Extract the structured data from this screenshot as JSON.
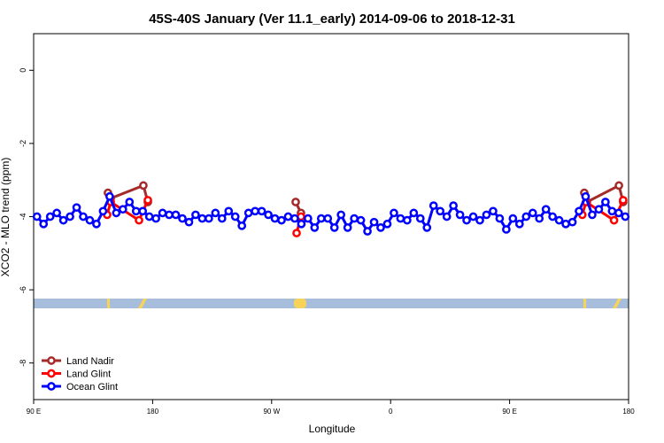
{
  "chart_data": {
    "type": "line",
    "title": "45S-40S January (Ver 11.1_early)   2014-09-06 to 2018-12-31",
    "x_label": "Longitude",
    "y_label": "XCO2 - MLO trend (ppm)",
    "xlim": [
      90,
      540
    ],
    "xticks": [
      {
        "value": 90,
        "label": "90 E"
      },
      {
        "value": 180,
        "label": "180"
      },
      {
        "value": 270,
        "label": "90 W"
      },
      {
        "value": 360,
        "label": "0"
      },
      {
        "value": 450,
        "label": "90 E"
      },
      {
        "value": 540,
        "label": "180"
      }
    ],
    "ylim": [
      -9,
      1
    ],
    "yticks": [
      0,
      -2,
      -4,
      -6,
      -8
    ],
    "legend": "bottom-left",
    "series": [
      {
        "name": "Land Nadir",
        "color": "#a52a2a",
        "x": [
          146.2,
          148.3,
          173,
          176.4,
          230,
          288.2,
          292.2,
          400,
          506.5,
          508.5,
          532.7,
          535.9
        ],
        "values": [
          -3.35,
          -3.5,
          -3.15,
          -3.6,
          null,
          -3.6,
          -3.9,
          null,
          -3.35,
          -3.6,
          -3.15,
          -3.6
        ]
      },
      {
        "name": "Land Glint",
        "color": "#ff0000",
        "x": [
          145.6,
          148.3,
          169.7,
          176.4,
          230,
          288.9,
          292.2,
          400,
          505,
          507.8,
          529,
          535.9
        ],
        "values": [
          -3.95,
          -3.6,
          -4.1,
          -3.55,
          null,
          -4.45,
          -4.0,
          null,
          -3.95,
          -3.6,
          -4.1,
          -3.55
        ]
      },
      {
        "name": "Ocean Glint",
        "color": "#0000ff",
        "x": [
          92.5,
          97.5,
          102.5,
          107.5,
          112.5,
          117.5,
          122.5,
          127.5,
          132.5,
          137.5,
          142.5,
          147.5,
          152.5,
          157.5,
          162.5,
          167.5,
          172.5,
          177.5,
          182.5,
          187.5,
          192.5,
          197.5,
          202.5,
          207.5,
          212.5,
          217.5,
          222.5,
          227.5,
          232.5,
          237.5,
          242.5,
          247.5,
          252.5,
          257.5,
          262.5,
          267.5,
          272.5,
          277.5,
          282.5,
          287.5,
          292.5,
          297.5,
          302.5,
          307.5,
          312.5,
          317.5,
          322.5,
          327.5,
          332.5,
          337.5,
          342.5,
          347.5,
          352.5,
          357.5,
          362.5,
          367.5,
          372.5,
          377.5,
          382.5,
          387.5,
          392.5,
          397.5,
          402.5,
          407.5,
          412.5,
          417.5,
          422.5,
          427.5,
          432.5,
          437.5,
          442.5,
          447.5,
          452.5,
          457.5,
          462.5,
          467.5,
          472.5,
          477.5,
          482.5,
          487.5,
          492.5,
          497.5,
          502.5,
          507.5,
          512.5,
          517.5,
          522.5,
          527.5,
          532.5,
          537.5
        ],
        "values": [
          -4.0,
          -4.2,
          -4.0,
          -3.9,
          -4.1,
          -4.0,
          -3.75,
          -4.0,
          -4.1,
          -4.2,
          -3.85,
          -3.45,
          -3.9,
          -3.8,
          -3.6,
          -3.85,
          -3.85,
          -4.0,
          -4.05,
          -3.9,
          -3.95,
          -3.95,
          -4.05,
          -4.15,
          -3.95,
          -4.05,
          -4.05,
          -3.9,
          -4.05,
          -3.85,
          -4.0,
          -4.25,
          -3.9,
          -3.85,
          -3.85,
          -3.95,
          -4.05,
          -4.1,
          -4.0,
          -4.05,
          -4.2,
          -4.05,
          -4.3,
          -4.05,
          -4.05,
          -4.3,
          -3.95,
          -4.3,
          -4.05,
          -4.1,
          -4.4,
          -4.15,
          -4.3,
          -4.2,
          -3.9,
          -4.05,
          -4.1,
          -3.9,
          -4.05,
          -4.3,
          -3.7,
          -3.85,
          -4.0,
          -3.7,
          -3.95,
          -4.1,
          -4.0,
          -4.1,
          -3.95,
          -3.85,
          -4.05,
          -4.35,
          -4.05,
          -4.2,
          -4.0,
          -3.9,
          -4.05,
          -3.8,
          -4.0,
          -4.1,
          -4.2,
          -4.15,
          -3.85,
          -3.45,
          -3.95,
          -3.8,
          -3.6,
          -3.85,
          -3.9,
          -4.0
        ]
      }
    ]
  }
}
